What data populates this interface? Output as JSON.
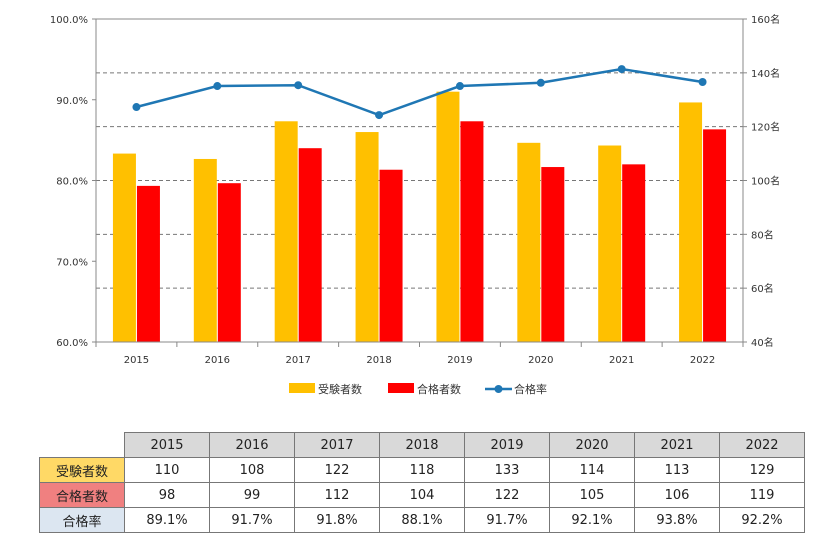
{
  "chart_data": {
    "type": "bar+line",
    "categories": [
      "2015",
      "2016",
      "2017",
      "2018",
      "2019",
      "2020",
      "2021",
      "2022"
    ],
    "series": [
      {
        "name": "受験者数",
        "axis": "right",
        "color": "#ffc000",
        "values": [
          110,
          108,
          122,
          118,
          133,
          114,
          113,
          129
        ]
      },
      {
        "name": "合格者数",
        "axis": "right",
        "color": "#ff0000",
        "values": [
          98,
          99,
          112,
          104,
          122,
          105,
          106,
          119
        ]
      },
      {
        "name": "合格率",
        "axis": "left",
        "color": "#1f77b4",
        "type": "line",
        "values": [
          89.1,
          91.7,
          91.8,
          88.1,
          91.7,
          92.1,
          93.8,
          92.2
        ]
      }
    ],
    "left_axis": {
      "ylim": [
        60,
        100
      ],
      "ticks": [
        "60.0%",
        "70.0%",
        "80.0%",
        "90.0%",
        "100.0%"
      ]
    },
    "right_axis": {
      "ylim": [
        40,
        160
      ],
      "ticks": [
        "40名",
        "60名",
        "80名",
        "100名",
        "120名",
        "140名",
        "160名"
      ]
    },
    "grid": true,
    "legend_position": "bottom-center"
  },
  "table": {
    "years": [
      "2015",
      "2016",
      "2017",
      "2018",
      "2019",
      "2020",
      "2021",
      "2022"
    ],
    "rows": [
      {
        "label": "受験者数",
        "cells": [
          "110",
          "108",
          "122",
          "118",
          "133",
          "114",
          "113",
          "129"
        ]
      },
      {
        "label": "合格者数",
        "cells": [
          "98",
          "99",
          "112",
          "104",
          "122",
          "105",
          "106",
          "119"
        ]
      },
      {
        "label": "合格率",
        "cells": [
          "89.1%",
          "91.7%",
          "91.8%",
          "88.1%",
          "91.7%",
          "92.1%",
          "93.8%",
          "92.2%"
        ]
      }
    ]
  }
}
